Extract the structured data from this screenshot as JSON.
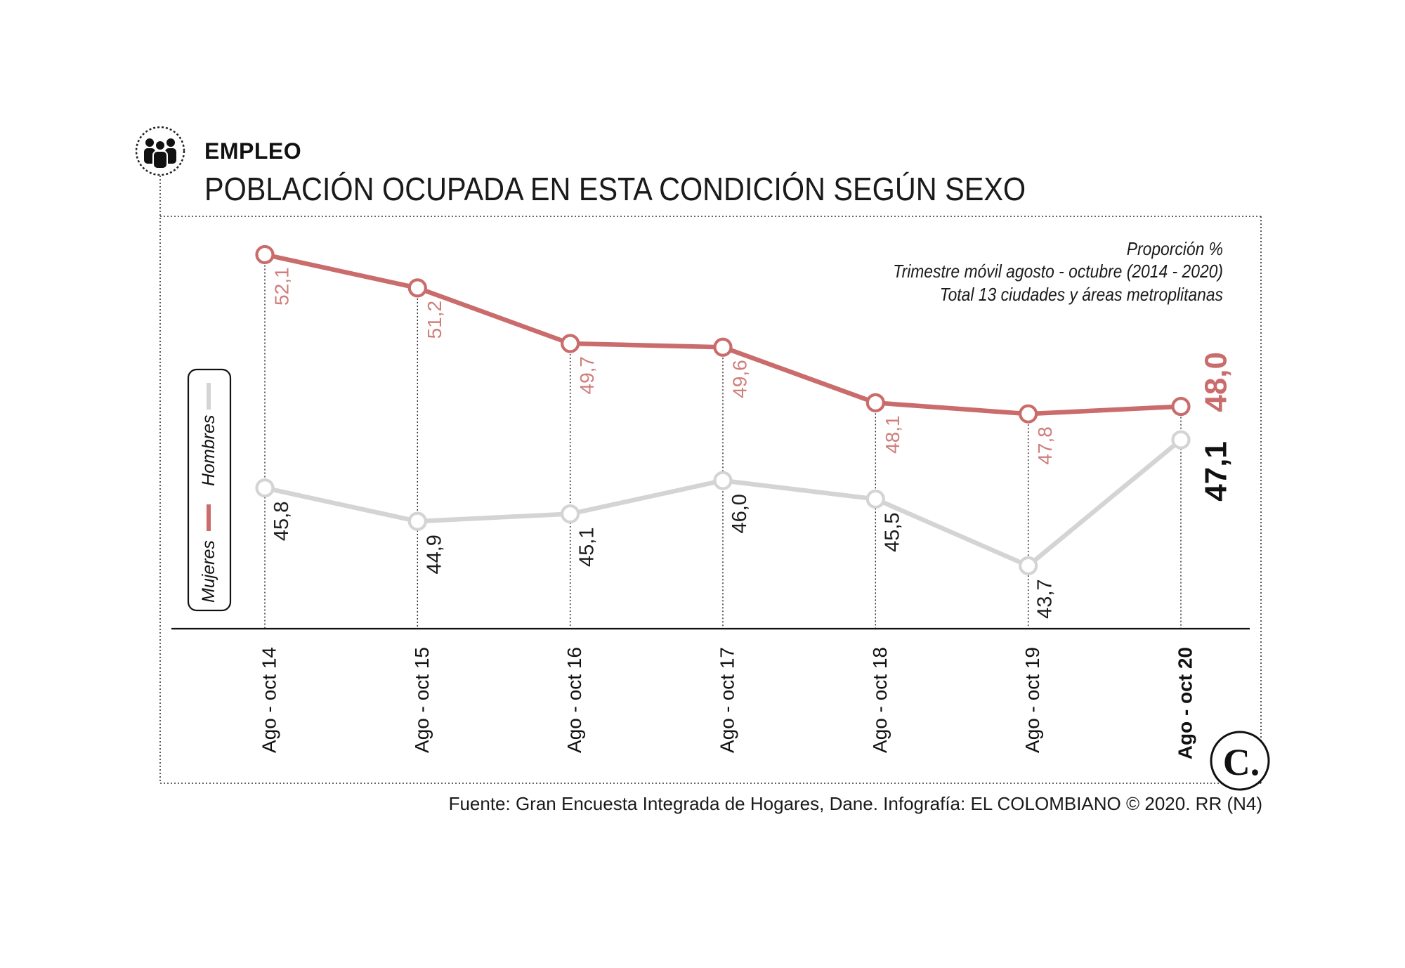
{
  "header": {
    "section": "EMPLEO"
  },
  "chart_data": {
    "type": "line",
    "title": "POBLACIÓN OCUPADA EN ESTA CONDICIÓN SEGÚN SEXO",
    "notes": [
      "Proporción %",
      "Trimestre móvil agosto - octubre (2014 - 2020)",
      "Total 13 ciudades y áreas metroplitanas"
    ],
    "categories": [
      "Ago - oct 14",
      "Ago - oct 15",
      "Ago - oct 16",
      "Ago - oct 17",
      "Ago - oct 18",
      "Ago - oct 19",
      "Ago - oct 20"
    ],
    "series": [
      {
        "name": "Mujeres",
        "values": [
          52.1,
          51.2,
          49.7,
          49.6,
          48.1,
          47.8,
          48.0
        ],
        "labels": [
          "52,1",
          "51,2",
          "49,7",
          "49,6",
          "48,1",
          "47,8",
          "48,0"
        ],
        "color": "#c96c6b",
        "label_color": "#d07d7b"
      },
      {
        "name": "Hombres",
        "values": [
          45.8,
          44.9,
          45.1,
          46.0,
          45.5,
          43.7,
          47.1
        ],
        "labels": [
          "45,8",
          "44,9",
          "45,1",
          "46,0",
          "45,5",
          "43,7",
          "47,1"
        ],
        "color": "#d4d4d4",
        "label_color": "#1c1c1c"
      }
    ],
    "ylim": [
      42,
      53
    ],
    "grid": false,
    "legend": "left"
  },
  "source": "Fuente: Gran Encuesta Integrada de Hogares, Dane. Infografía: EL COLOMBIANO © 2020. RR (N4)",
  "logo": {
    "text": "C."
  },
  "icons": {
    "section": "people-group-icon",
    "logo": "el-colombiano-logo-icon"
  }
}
